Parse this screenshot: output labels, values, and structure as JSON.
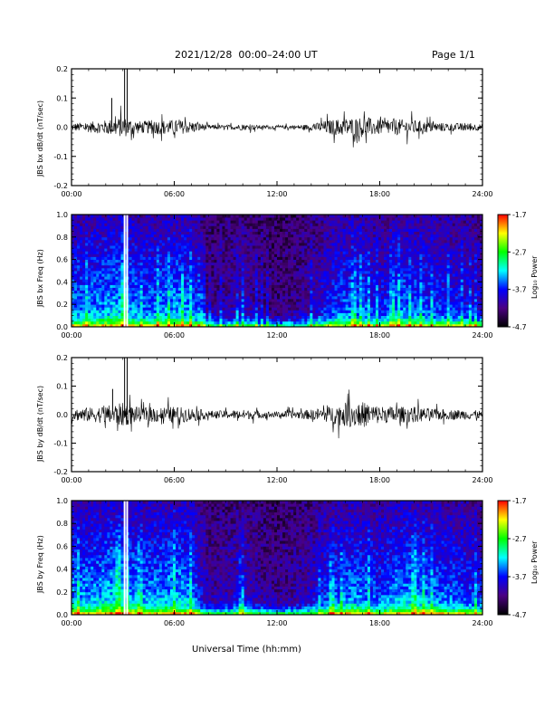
{
  "header": {
    "date_range": "2021/12/28  00:00–24:00 UT",
    "page": "Page 1/1"
  },
  "x_axis": {
    "title": "Universal Time (hh:mm)",
    "ticks": [
      "00:00",
      "06:00",
      "12:00",
      "18:00",
      "24:00"
    ],
    "range_hours": [
      0,
      24
    ]
  },
  "colorbar": {
    "label": "Log₁₀ Power",
    "ticks": [
      "-1.7",
      "-2.7",
      "-3.7",
      "-4.7"
    ],
    "range": [
      -4.7,
      -1.7
    ],
    "colormap": "rainbow",
    "colors": [
      "#000000",
      "#4b0082",
      "#0000ff",
      "#00ffff",
      "#00ff00",
      "#ffff00",
      "#ff0000"
    ]
  },
  "chart_data": [
    {
      "type": "line",
      "ylabel": "JBS bx dB/dt (nT/sec)",
      "ylim": [
        -0.2,
        0.2
      ],
      "yticks": [
        "0.2",
        "0.1",
        "0.0",
        "-0.1",
        "-0.2"
      ],
      "activity_envelope": {
        "hours": [
          0,
          1,
          2,
          3,
          4,
          5,
          6,
          7,
          8,
          9,
          10,
          11,
          12,
          13,
          14,
          15,
          16,
          17,
          18,
          19,
          20,
          21,
          22,
          23,
          24
        ],
        "amplitude": [
          0.02,
          0.025,
          0.035,
          0.05,
          0.03,
          0.035,
          0.035,
          0.03,
          0.012,
          0.01,
          0.015,
          0.01,
          0.008,
          0.01,
          0.015,
          0.035,
          0.045,
          0.05,
          0.035,
          0.04,
          0.035,
          0.025,
          0.02,
          0.02,
          0.015
        ]
      },
      "spikes": [
        {
          "hour": 3.1,
          "value": 0.2
        },
        {
          "hour": 3.25,
          "value": 0.2
        },
        {
          "hour": 2.35,
          "value": 0.1
        }
      ]
    },
    {
      "type": "heatmap",
      "ylabel": "JBS bx Freq (Hz)",
      "ylim": [
        0.0,
        1.0
      ],
      "yticks": [
        "1.0",
        "0.8",
        "0.6",
        "0.4",
        "0.2",
        "0.0"
      ],
      "zlim": [
        -4.7,
        -1.7
      ],
      "activity_envelope": {
        "hours": [
          0,
          1,
          2,
          3,
          4,
          5,
          6,
          7,
          8,
          9,
          10,
          11,
          12,
          13,
          14,
          15,
          16,
          17,
          18,
          19,
          20,
          21,
          22,
          23,
          24
        ],
        "level": [
          0.6,
          0.6,
          0.65,
          0.7,
          0.55,
          0.6,
          0.65,
          0.6,
          0.15,
          0.2,
          0.3,
          0.15,
          0.1,
          0.15,
          0.25,
          0.45,
          0.55,
          0.55,
          0.4,
          0.6,
          0.55,
          0.5,
          0.45,
          0.4,
          0.35
        ]
      },
      "data_gaps_hours": [
        3.1,
        3.25
      ]
    },
    {
      "type": "line",
      "ylabel": "JBS by dB/dt (nT/sec)",
      "ylim": [
        -0.2,
        0.2
      ],
      "yticks": [
        "0.2",
        "0.1",
        "0.0",
        "-0.1",
        "-0.2"
      ],
      "activity_envelope": {
        "hours": [
          0,
          1,
          2,
          3,
          4,
          5,
          6,
          7,
          8,
          9,
          10,
          11,
          12,
          13,
          14,
          15,
          16,
          17,
          18,
          19,
          20,
          21,
          22,
          23,
          24
        ],
        "amplitude": [
          0.03,
          0.035,
          0.045,
          0.06,
          0.035,
          0.04,
          0.04,
          0.035,
          0.02,
          0.02,
          0.025,
          0.018,
          0.015,
          0.02,
          0.025,
          0.04,
          0.06,
          0.065,
          0.045,
          0.04,
          0.04,
          0.03,
          0.025,
          0.025,
          0.02
        ]
      },
      "spikes": [
        {
          "hour": 3.1,
          "value": 0.2
        },
        {
          "hour": 3.25,
          "value": 0.2
        },
        {
          "hour": 2.4,
          "value": 0.09
        }
      ]
    },
    {
      "type": "heatmap",
      "ylabel": "JBS by Freq (Hz)",
      "ylim": [
        0.0,
        1.0
      ],
      "yticks": [
        "1.0",
        "0.8",
        "0.6",
        "0.4",
        "0.2",
        "0.0"
      ],
      "zlim": [
        -4.7,
        -1.7
      ],
      "activity_envelope": {
        "hours": [
          0,
          1,
          2,
          3,
          4,
          5,
          6,
          7,
          8,
          9,
          10,
          11,
          12,
          13,
          14,
          15,
          16,
          17,
          18,
          19,
          20,
          21,
          22,
          23,
          24
        ],
        "level": [
          0.65,
          0.65,
          0.7,
          0.75,
          0.6,
          0.65,
          0.7,
          0.65,
          0.2,
          0.25,
          0.35,
          0.2,
          0.15,
          0.2,
          0.3,
          0.5,
          0.6,
          0.6,
          0.5,
          0.65,
          0.65,
          0.6,
          0.55,
          0.5,
          0.45
        ]
      },
      "data_gaps_hours": [
        3.1,
        3.25
      ]
    }
  ]
}
